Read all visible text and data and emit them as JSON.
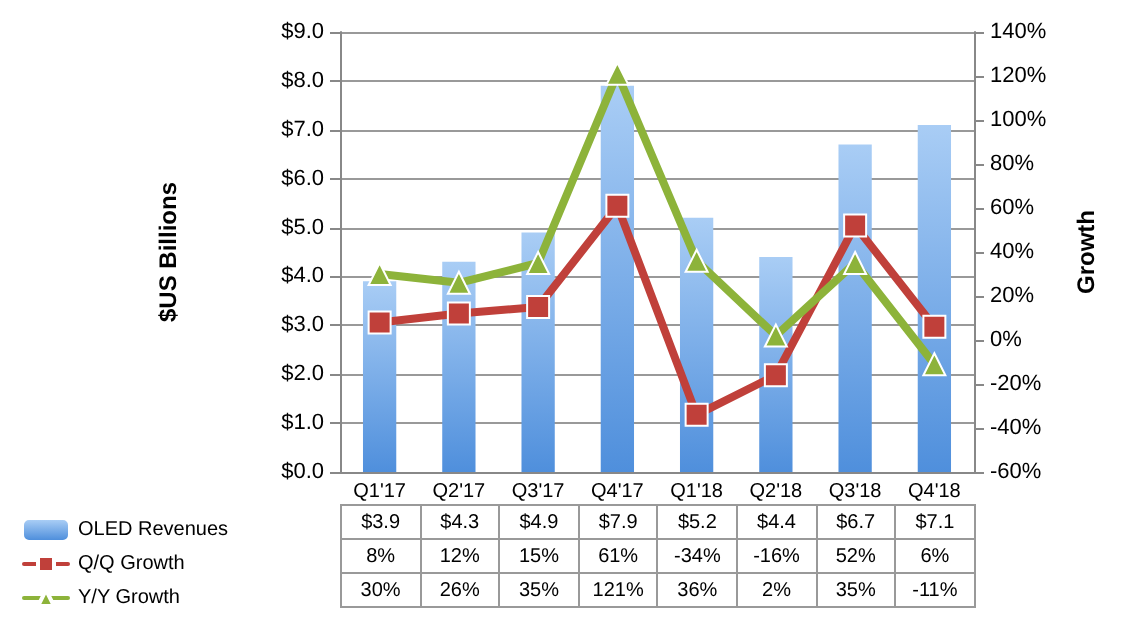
{
  "chart_data": {
    "type": "bar",
    "ylabel": "$US Billions",
    "y2label": "Growth",
    "categories": [
      "Q1'17",
      "Q2'17",
      "Q3'17",
      "Q4'17",
      "Q1'18",
      "Q2'18",
      "Q3'18",
      "Q4'18"
    ],
    "series": [
      {
        "name": "OLED Revenues",
        "color": "#4f8fdc",
        "values": [
          3.9,
          4.3,
          4.9,
          7.9,
          5.2,
          4.4,
          6.7,
          7.1
        ],
        "value_labels": [
          "$3.9",
          "$4.3",
          "$4.9",
          "$7.9",
          "$5.2",
          "$4.4",
          "$6.7",
          "$7.1"
        ]
      },
      {
        "name": "Q/Q Growth",
        "type": "line",
        "axis": "y2",
        "color": "#c0403a",
        "marker": "square",
        "values": [
          8,
          12,
          15,
          61,
          -34,
          -16,
          52,
          6
        ],
        "value_labels": [
          "8%",
          "12%",
          "15%",
          "61%",
          "-34%",
          "-16%",
          "52%",
          "6%"
        ]
      },
      {
        "name": "Y/Y Growth",
        "type": "line",
        "axis": "y2",
        "color": "#8db33a",
        "marker": "triangle",
        "values": [
          30,
          26,
          35,
          121,
          36,
          2,
          35,
          -11
        ],
        "value_labels": [
          "30%",
          "26%",
          "35%",
          "121%",
          "36%",
          "2%",
          "35%",
          "-11%"
        ]
      }
    ],
    "ylim": [
      0,
      9
    ],
    "yticks": [
      {
        "value": 0,
        "label": "$0.0"
      },
      {
        "value": 1,
        "label": "$1.0"
      },
      {
        "value": 2,
        "label": "$2.0"
      },
      {
        "value": 3,
        "label": "$3.0"
      },
      {
        "value": 4,
        "label": "$4.0"
      },
      {
        "value": 5,
        "label": "$5.0"
      },
      {
        "value": 6,
        "label": "$6.0"
      },
      {
        "value": 7,
        "label": "$7.0"
      },
      {
        "value": 8,
        "label": "$8.0"
      },
      {
        "value": 9,
        "label": "$9.0"
      }
    ],
    "y2lim": [
      -60,
      140
    ],
    "y2ticks": [
      {
        "value": -60,
        "label": "-60%"
      },
      {
        "value": -40,
        "label": "-40%"
      },
      {
        "value": -20,
        "label": "-20%"
      },
      {
        "value": 0,
        "label": "0%"
      },
      {
        "value": 20,
        "label": "20%"
      },
      {
        "value": 40,
        "label": "40%"
      },
      {
        "value": 60,
        "label": "60%"
      },
      {
        "value": 80,
        "label": "80%"
      },
      {
        "value": 100,
        "label": "100%"
      },
      {
        "value": 120,
        "label": "120%"
      },
      {
        "value": 140,
        "label": "140%"
      }
    ],
    "grid": "y",
    "legend": "bottom left",
    "line_style": "solid"
  }
}
